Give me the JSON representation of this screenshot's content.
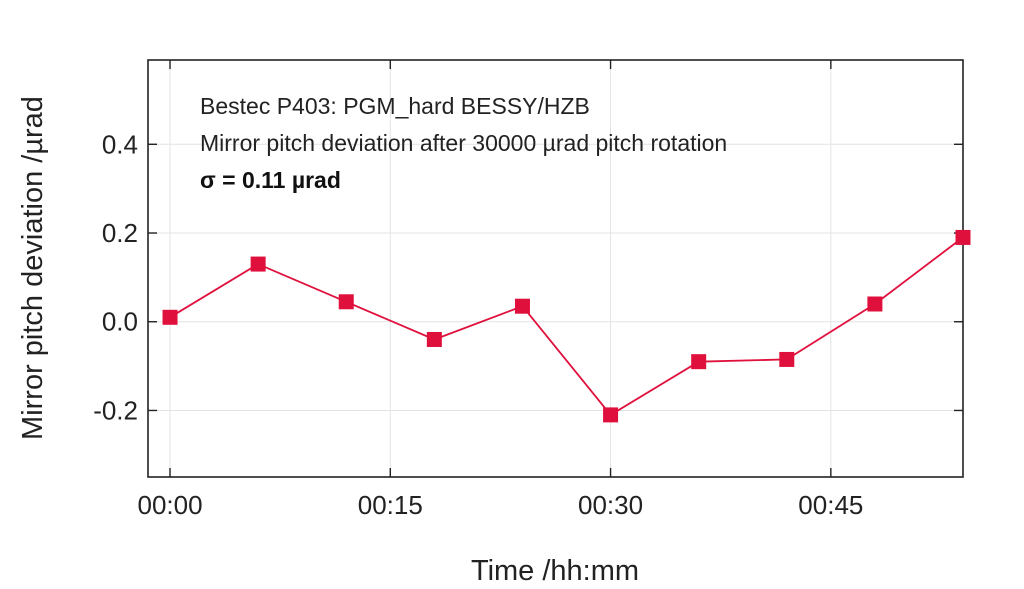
{
  "chart_data": {
    "type": "line",
    "xlabel": "Time /hh:mm",
    "ylabel": "Mirror pitch deviation /µrad",
    "x_ticks": [
      "00:00",
      "00:15",
      "00:30",
      "00:45"
    ],
    "y_ticks": [
      "-0.2",
      "0.0",
      "0.2",
      "0.4"
    ],
    "xlim_minutes": [
      -1.5,
      54
    ],
    "ylim": [
      -0.35,
      0.59
    ],
    "grid": true,
    "annotations": [
      "Bestec P403: PGM_hard BESSY/HZB",
      "Mirror pitch deviation after 30000 µrad pitch rotation",
      "σ = 0.11 µrad"
    ],
    "series": [
      {
        "color": "#e0103c",
        "marker": "square",
        "x_minutes": [
          0,
          6,
          12,
          18,
          24,
          30,
          36,
          42,
          48,
          54
        ],
        "values": [
          0.01,
          0.13,
          0.045,
          -0.04,
          0.035,
          -0.21,
          -0.09,
          -0.085,
          0.04,
          0.19
        ]
      }
    ]
  }
}
